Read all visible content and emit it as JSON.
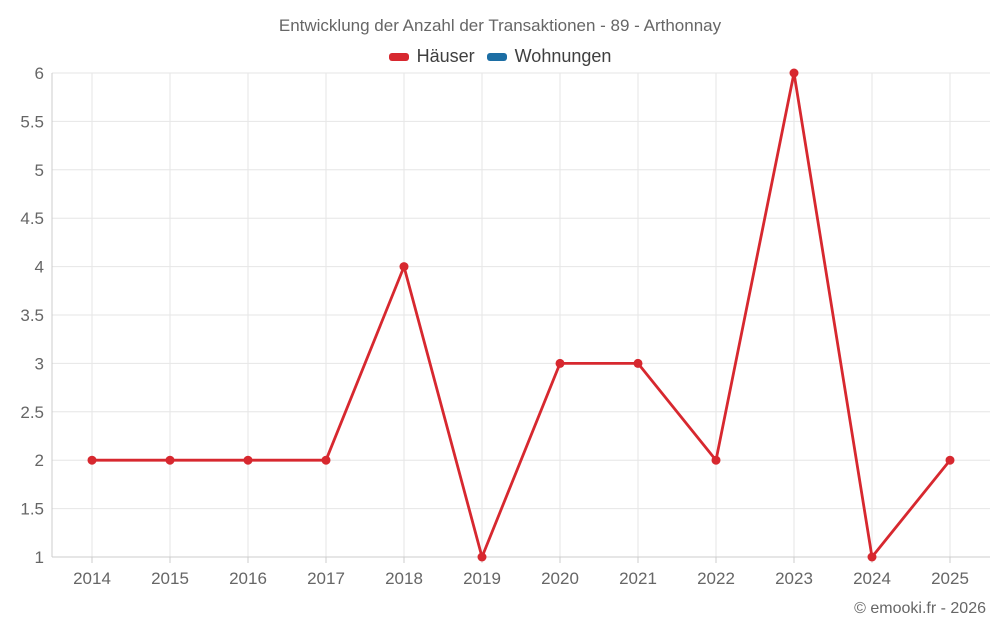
{
  "header": {
    "title": "Entwicklung der Anzahl der Transaktionen - 89 - Arthonnay"
  },
  "legend": {
    "items": [
      {
        "label": "Häuser",
        "color": "#d7282f"
      },
      {
        "label": "Wohnungen",
        "color": "#1c6ea4"
      }
    ]
  },
  "footer": {
    "credit": "© emooki.fr - 2026"
  },
  "colors": {
    "hauser_red": "#d7282f",
    "wohnungen_blue": "#1c6ea4",
    "gridline": "#e6e6e6",
    "axis_line": "#cccccc",
    "label_text": "#666666"
  },
  "chart_data": {
    "type": "line",
    "title": "Entwicklung der Anzahl der Transaktionen - 89 - Arthonnay",
    "categories": [
      "2014",
      "2015",
      "2016",
      "2017",
      "2018",
      "2019",
      "2020",
      "2021",
      "2022",
      "2023",
      "2024",
      "2025"
    ],
    "series": [
      {
        "name": "Häuser",
        "color": "#d7282f",
        "values": [
          2,
          2,
          2,
          2,
          4,
          1,
          3,
          3,
          2,
          6,
          1,
          2
        ]
      },
      {
        "name": "Wohnungen",
        "color": "#1c6ea4",
        "values": []
      }
    ],
    "xlabel": "",
    "ylabel": "",
    "ylim": [
      1,
      6
    ],
    "ytick_step": 0.5,
    "grid": true,
    "legend_position": "top",
    "marker_radius": 4.5,
    "line_width": 2.8
  }
}
